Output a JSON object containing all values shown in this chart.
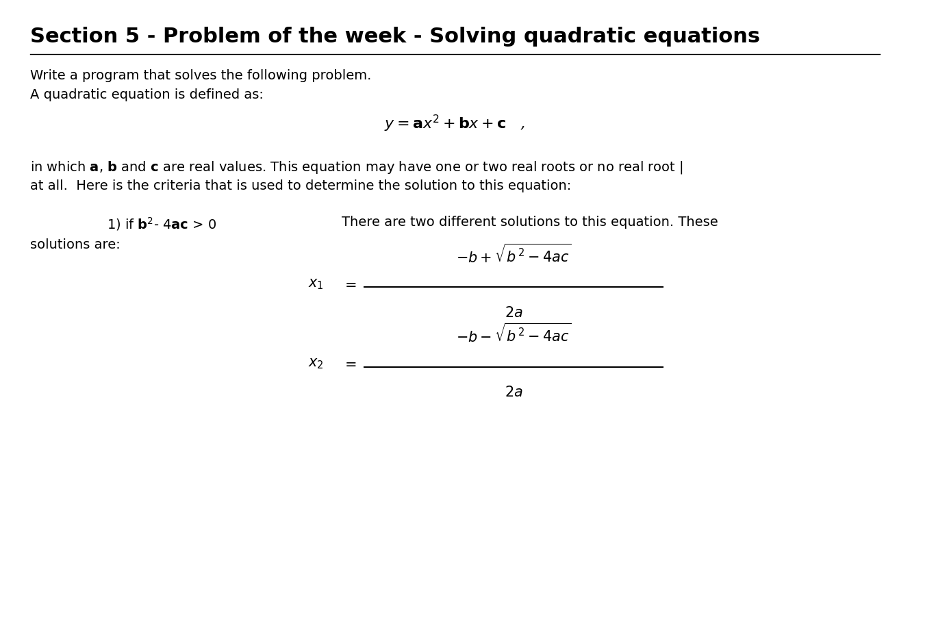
{
  "title": "Section 5 - Problem of the week - Solving quadratic equations",
  "background_color": "#ffffff",
  "text_color": "#000000",
  "figsize": [
    13.67,
    9.17
  ],
  "dpi": 100,
  "para1_line1": "Write a program that solves the following problem.",
  "para1_line2": "A quadratic equation is defined as:",
  "para2_line1": "in which $\\mathbf{a}$, $\\mathbf{b}$ and $\\mathbf{c}$ are real values. This equation may have one or two real roots or no real root |",
  "para2_line2": "at all.  Here is the criteria that is used to determine the solution to this equation:",
  "criteria_label": "1) if $\\mathbf{b}^2$- 4$\\mathbf{ac}$ > 0",
  "criteria_desc": "There are two different solutions to this equation. These",
  "solutions_are": "solutions are:"
}
